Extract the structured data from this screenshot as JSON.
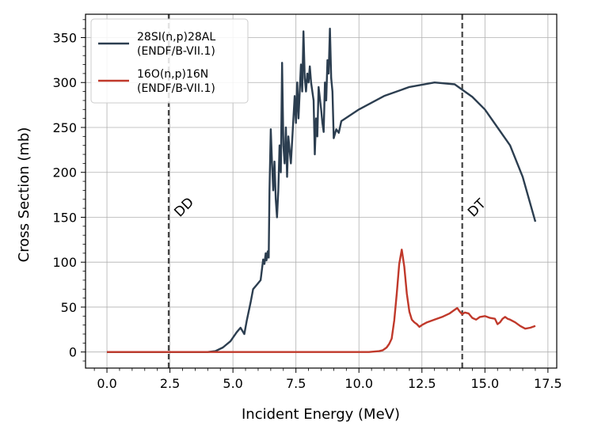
{
  "chart_data": {
    "type": "line",
    "xlabel": "Incident Energy (MeV)",
    "ylabel": "Cross Section (mb)",
    "xlim": [
      -0.85,
      17.85
    ],
    "ylim": [
      -17.9,
      376
    ],
    "xticks": [
      0.0,
      2.5,
      5.0,
      7.5,
      10.0,
      12.5,
      15.0,
      17.5
    ],
    "xtick_labels": [
      "0.0",
      "2.5",
      "5.0",
      "7.5",
      "10.0",
      "12.5",
      "15.0",
      "17.5"
    ],
    "yticks": [
      0,
      50,
      100,
      150,
      200,
      250,
      300,
      350
    ],
    "ytick_labels": [
      "0",
      "50",
      "100",
      "150",
      "200",
      "250",
      "300",
      "350"
    ],
    "grid": true,
    "legend_position": "top-left",
    "vlines": [
      {
        "label": "DD",
        "x": 2.45,
        "label_y": 162
      },
      {
        "label": "DT",
        "x": 14.1,
        "label_y": 162
      }
    ],
    "series": [
      {
        "name": "28SI(n,p)28AL",
        "library": "(ENDF/B-VII.1)",
        "color": "#2c3e50",
        "points": [
          [
            0,
            0
          ],
          [
            4.0,
            0
          ],
          [
            4.3,
            1
          ],
          [
            4.6,
            5
          ],
          [
            4.9,
            12
          ],
          [
            5.15,
            22
          ],
          [
            5.3,
            27
          ],
          [
            5.45,
            20
          ],
          [
            5.55,
            35
          ],
          [
            5.7,
            55
          ],
          [
            5.8,
            70
          ],
          [
            5.95,
            75
          ],
          [
            6.1,
            80
          ],
          [
            6.2,
            103
          ],
          [
            6.25,
            98
          ],
          [
            6.3,
            110
          ],
          [
            6.33,
            102
          ],
          [
            6.38,
            112
          ],
          [
            6.42,
            105
          ],
          [
            6.45,
            180
          ],
          [
            6.5,
            248
          ],
          [
            6.55,
            210
          ],
          [
            6.6,
            180
          ],
          [
            6.65,
            212
          ],
          [
            6.7,
            170
          ],
          [
            6.75,
            150
          ],
          [
            6.8,
            180
          ],
          [
            6.85,
            230
          ],
          [
            6.9,
            200
          ],
          [
            6.95,
            322
          ],
          [
            7.0,
            230
          ],
          [
            7.05,
            210
          ],
          [
            7.1,
            250
          ],
          [
            7.15,
            195
          ],
          [
            7.2,
            240
          ],
          [
            7.3,
            210
          ],
          [
            7.4,
            260
          ],
          [
            7.45,
            285
          ],
          [
            7.5,
            255
          ],
          [
            7.55,
            300
          ],
          [
            7.6,
            260
          ],
          [
            7.7,
            320
          ],
          [
            7.75,
            290
          ],
          [
            7.8,
            357
          ],
          [
            7.85,
            305
          ],
          [
            7.9,
            290
          ],
          [
            7.95,
            310
          ],
          [
            8.0,
            300
          ],
          [
            8.05,
            318
          ],
          [
            8.1,
            300
          ],
          [
            8.2,
            280
          ],
          [
            8.25,
            220
          ],
          [
            8.3,
            260
          ],
          [
            8.35,
            240
          ],
          [
            8.4,
            295
          ],
          [
            8.5,
            270
          ],
          [
            8.55,
            255
          ],
          [
            8.6,
            245
          ],
          [
            8.65,
            300
          ],
          [
            8.7,
            280
          ],
          [
            8.75,
            325
          ],
          [
            8.8,
            310
          ],
          [
            8.85,
            360
          ],
          [
            8.9,
            305
          ],
          [
            8.95,
            290
          ],
          [
            9.0,
            238
          ],
          [
            9.1,
            248
          ],
          [
            9.2,
            244
          ],
          [
            9.3,
            257
          ],
          [
            10.0,
            270
          ],
          [
            11.0,
            285
          ],
          [
            12.0,
            295
          ],
          [
            13.0,
            300
          ],
          [
            13.8,
            298
          ],
          [
            14.5,
            284
          ],
          [
            15.0,
            270
          ],
          [
            16.0,
            230
          ],
          [
            16.5,
            195
          ],
          [
            17.0,
            145
          ]
        ]
      },
      {
        "name": "16O(n,p)16N",
        "library": "(ENDF/B-VII.1)",
        "color": "#c0392b",
        "points": [
          [
            0,
            0
          ],
          [
            10.4,
            0
          ],
          [
            10.8,
            1
          ],
          [
            10.95,
            2
          ],
          [
            11.1,
            5
          ],
          [
            11.2,
            9
          ],
          [
            11.3,
            15
          ],
          [
            11.4,
            35
          ],
          [
            11.5,
            65
          ],
          [
            11.6,
            98
          ],
          [
            11.7,
            114
          ],
          [
            11.8,
            95
          ],
          [
            11.9,
            65
          ],
          [
            12.0,
            45
          ],
          [
            12.1,
            36
          ],
          [
            12.2,
            33
          ],
          [
            12.3,
            31
          ],
          [
            12.4,
            28
          ],
          [
            12.5,
            30
          ],
          [
            12.7,
            33
          ],
          [
            13.0,
            36
          ],
          [
            13.3,
            39
          ],
          [
            13.6,
            43
          ],
          [
            13.8,
            47
          ],
          [
            13.9,
            49
          ],
          [
            14.0,
            45
          ],
          [
            14.1,
            42
          ],
          [
            14.2,
            44
          ],
          [
            14.35,
            43
          ],
          [
            14.5,
            38
          ],
          [
            14.65,
            36
          ],
          [
            14.8,
            39
          ],
          [
            15.0,
            40
          ],
          [
            15.2,
            38
          ],
          [
            15.4,
            37
          ],
          [
            15.5,
            31
          ],
          [
            15.6,
            33
          ],
          [
            15.7,
            37
          ],
          [
            15.8,
            39
          ],
          [
            15.9,
            37
          ],
          [
            16.0,
            36
          ],
          [
            16.2,
            33
          ],
          [
            16.4,
            29
          ],
          [
            16.6,
            26
          ],
          [
            16.8,
            27
          ],
          [
            17.0,
            29
          ]
        ]
      }
    ]
  }
}
